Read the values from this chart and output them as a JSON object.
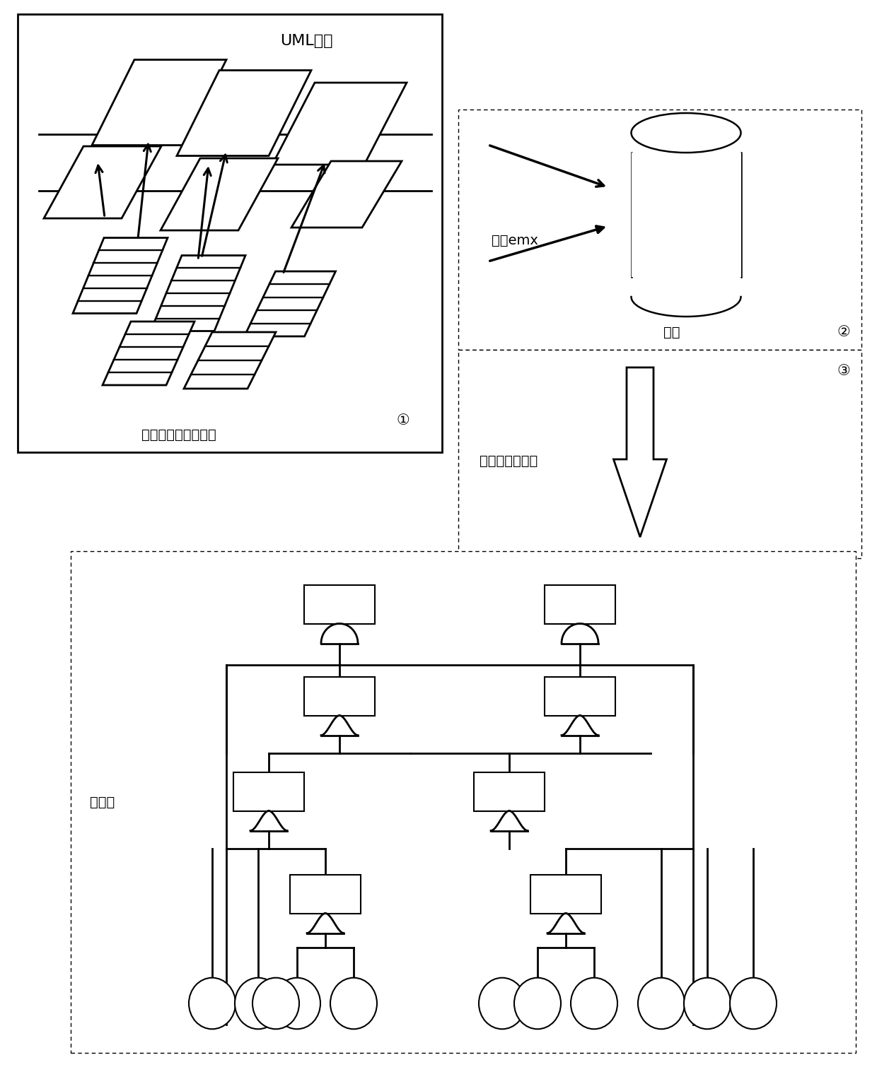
{
  "bg_color": "#ffffff",
  "title_uml": "UML模型",
  "label1": "扩展的故障描述语义",
  "label1_num": "①",
  "label2_text": "解析emx",
  "label2_db": "数据",
  "label2_num": "②",
  "label3_text": "故障树生成算法",
  "label3_num": "③",
  "label4": "故障树"
}
